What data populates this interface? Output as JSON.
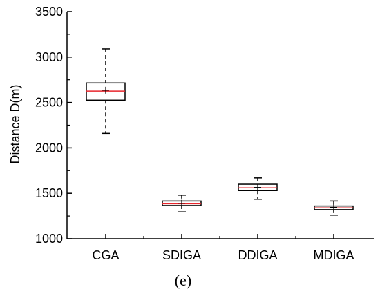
{
  "chart_data": {
    "type": "box",
    "title": "",
    "xlabel": "",
    "ylabel": "Distance D(m)",
    "ylim": [
      1000,
      3500
    ],
    "yticks": [
      1000,
      1500,
      2000,
      2500,
      3000,
      3500
    ],
    "categories": [
      "CGA",
      "SDIGA",
      "DDIGA",
      "MDIGA"
    ],
    "boxes": [
      {
        "name": "CGA",
        "whisker_low": 2160,
        "q1": 2525,
        "median": 2625,
        "mean": 2635,
        "q3": 2715,
        "whisker_high": 3090
      },
      {
        "name": "SDIGA",
        "whisker_low": 1295,
        "q1": 1365,
        "median": 1385,
        "mean": 1390,
        "q3": 1415,
        "whisker_high": 1480
      },
      {
        "name": "DDIGA",
        "whisker_low": 1435,
        "q1": 1530,
        "median": 1560,
        "mean": 1565,
        "q3": 1600,
        "whisker_high": 1670
      },
      {
        "name": "MDIGA",
        "whisker_low": 1260,
        "q1": 1320,
        "median": 1340,
        "mean": 1345,
        "q3": 1360,
        "whisker_high": 1415
      }
    ],
    "colors": {
      "box": "#000000",
      "median": "#e8262d",
      "whisker": "#000000"
    }
  },
  "caption": "(e)"
}
